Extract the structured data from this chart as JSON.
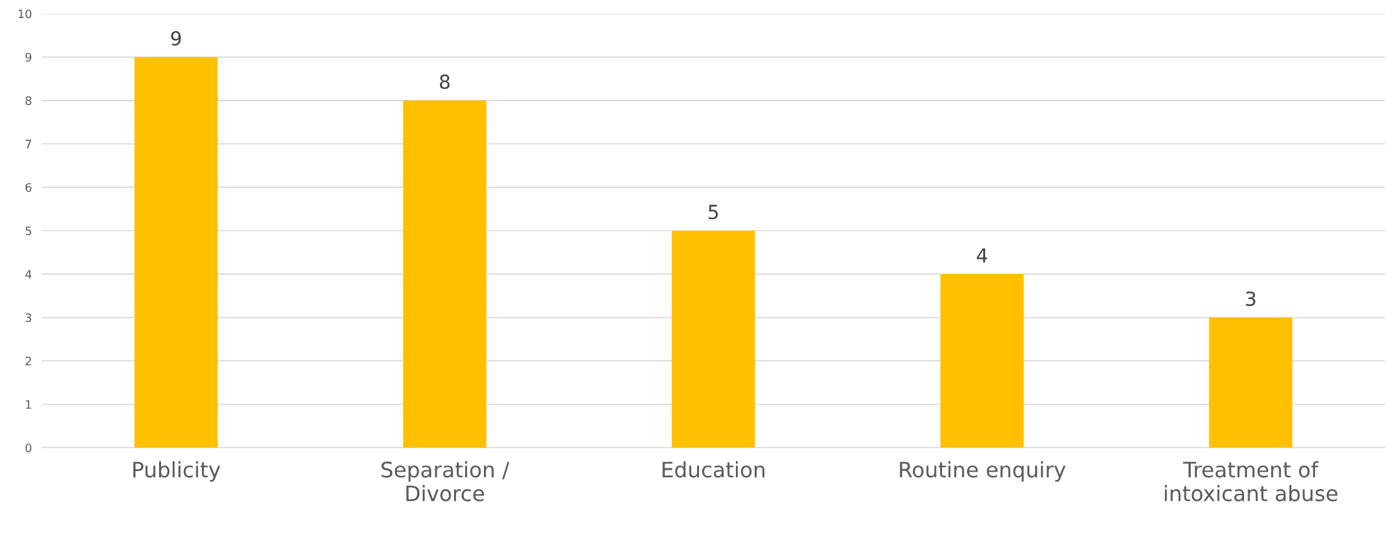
{
  "chart_data": {
    "type": "bar",
    "categories": [
      "Publicity",
      "Separation /\nDivorce",
      "Education",
      "Routine enquiry",
      "Treatment of\nintoxicant abuse"
    ],
    "values": [
      9,
      8,
      5,
      4,
      3
    ],
    "color": "#ffc000",
    "ylim": [
      0,
      10
    ],
    "yticks": [
      0,
      1,
      2,
      3,
      4,
      5,
      6,
      7,
      8,
      9,
      10
    ],
    "grid": "y",
    "data_labels": true
  }
}
